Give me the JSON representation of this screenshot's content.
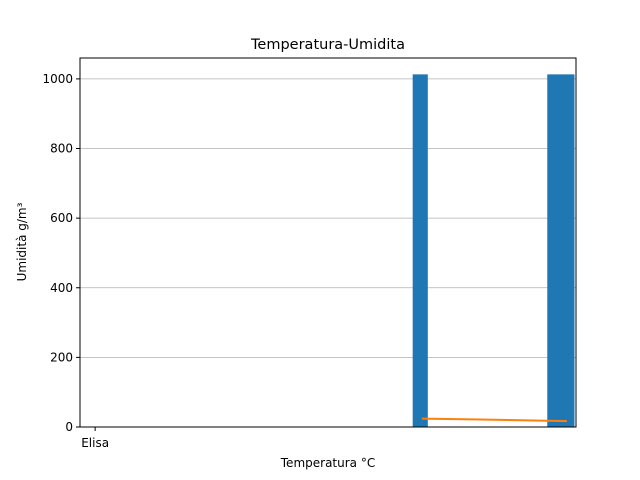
{
  "chart_data": {
    "type": "bar",
    "title": "Temperatura-Umidita",
    "xlabel": "Temperatura °C",
    "ylabel": "Umidità g/m³",
    "x_tick_labels": [
      {
        "x": 0,
        "label": "Elisa"
      }
    ],
    "xlim": [
      -0.5,
      15.9
    ],
    "ylim": [
      0,
      1060
    ],
    "yticks": [
      0,
      200,
      400,
      600,
      800,
      1000
    ],
    "grid": "horizontal",
    "legend": "none",
    "bars": [
      {
        "x": 10.75,
        "width": 0.5,
        "value": 1013
      },
      {
        "x": 15.4,
        "width": 0.9,
        "value": 1013
      }
    ],
    "line": {
      "x": [
        10.8,
        12.5,
        15.6
      ],
      "y": [
        24,
        22,
        17
      ]
    },
    "colors": {
      "bar": "#1f77b4",
      "line": "#ff7f0e",
      "grid": "#b0b0b0"
    }
  }
}
